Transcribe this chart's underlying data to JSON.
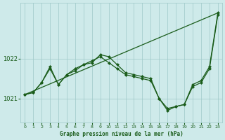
{
  "background_color": "#ceeaea",
  "grid_color": "#9ec8c8",
  "line_color": "#1a5c1a",
  "title": "Graphe pression niveau de la mer (hPa)",
  "xlim": [
    -0.5,
    23.5
  ],
  "ylim": [
    1020.4,
    1023.4
  ],
  "yticks": [
    1021,
    1022
  ],
  "xticks": [
    0,
    1,
    2,
    3,
    4,
    5,
    6,
    7,
    8,
    9,
    10,
    11,
    12,
    13,
    14,
    15,
    16,
    17,
    18,
    19,
    20,
    21,
    22,
    23
  ],
  "series1_straight": {
    "x": [
      0,
      23
    ],
    "y": [
      1021.1,
      1023.15
    ]
  },
  "series2": {
    "x": [
      0,
      1,
      2,
      3,
      4,
      5,
      6,
      7,
      8,
      9,
      10,
      11,
      12,
      13,
      14,
      15,
      16,
      17,
      18,
      19,
      20,
      21,
      22,
      23
    ],
    "y": [
      1021.1,
      1021.15,
      1021.4,
      1021.75,
      1021.35,
      1021.6,
      1021.75,
      1021.85,
      1021.95,
      1022.05,
      1021.9,
      1021.75,
      1021.6,
      1021.55,
      1021.5,
      1021.45,
      1021.0,
      1020.75,
      1020.8,
      1020.85,
      1021.3,
      1021.4,
      1021.75,
      1023.1
    ]
  },
  "series3": {
    "x": [
      0,
      1,
      2,
      3,
      4,
      5,
      6,
      7,
      8,
      9,
      10,
      11,
      12,
      13,
      14,
      15,
      16,
      17,
      18,
      19,
      20,
      21,
      22,
      23
    ],
    "y": [
      1021.1,
      1021.15,
      1021.4,
      1021.8,
      1021.35,
      1021.6,
      1021.7,
      1021.85,
      1021.9,
      1022.1,
      1022.05,
      1021.85,
      1021.65,
      1021.6,
      1021.55,
      1021.5,
      1021.0,
      1020.7,
      1020.8,
      1020.85,
      1021.35,
      1021.45,
      1021.8,
      1023.15
    ]
  }
}
